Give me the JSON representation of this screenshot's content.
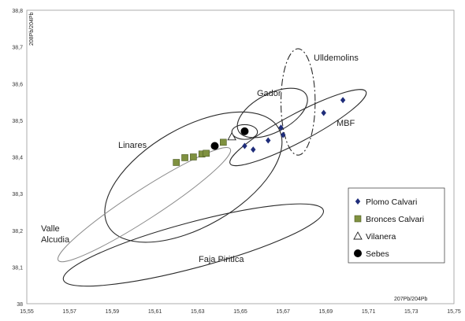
{
  "chart_data": {
    "type": "scatter",
    "xlabel": "207Pb/204Pb",
    "ylabel": "208Pb/204Pb",
    "xlim": [
      15.55,
      15.75
    ],
    "ylim": [
      38.0,
      38.8
    ],
    "xticks": [
      "15,55",
      "15,57",
      "15,59",
      "15,61",
      "15,63",
      "15,65",
      "15,67",
      "15,69",
      "15,71",
      "15,73",
      "15,75"
    ],
    "yticks": [
      "38",
      "38,1",
      "38,2",
      "38,3",
      "38,4",
      "38,5",
      "38,6",
      "38,7",
      "38,8"
    ],
    "grid": false,
    "legend_position": "right",
    "regions": [
      {
        "label": "Linares",
        "cx": 15.628,
        "cy": 38.345,
        "rx": 0.046,
        "ry": 0.135,
        "style": "solid",
        "angle_deg": -30
      },
      {
        "label": "Valle Alcudia",
        "cx": 15.605,
        "cy": 38.27,
        "rx": 0.048,
        "ry": 0.04,
        "style": "solid-light",
        "angle_deg": -33
      },
      {
        "label": "Faja Piritica",
        "cx": 15.628,
        "cy": 38.16,
        "rx": 0.063,
        "ry": 0.062,
        "style": "solid",
        "angle_deg": -15
      },
      {
        "label": "Gador",
        "cx": 15.665,
        "cy": 38.52,
        "rx": 0.018,
        "ry": 0.052,
        "style": "solid",
        "angle_deg": -28
      },
      {
        "label": "MBF",
        "cx": 15.677,
        "cy": 38.48,
        "rx": 0.036,
        "ry": 0.038,
        "style": "solid",
        "angle_deg": -28
      },
      {
        "label": "Ulldemolins",
        "cx": 15.677,
        "cy": 38.55,
        "rx": 0.008,
        "ry": 0.145,
        "style": "dash-dot",
        "angle_deg": 0
      },
      {
        "label": "",
        "cx": 15.652,
        "cy": 38.468,
        "rx": 0.006,
        "ry": 0.02,
        "style": "solid",
        "angle_deg": 0
      }
    ],
    "series": [
      {
        "name": "Plomo Calvari",
        "marker": "diamond",
        "color": "#1f2d7a",
        "points": [
          [
            15.652,
            38.43
          ],
          [
            15.656,
            38.42
          ],
          [
            15.663,
            38.445
          ],
          [
            15.669,
            38.48
          ],
          [
            15.67,
            38.46
          ],
          [
            15.689,
            38.52
          ],
          [
            15.698,
            38.555
          ]
        ]
      },
      {
        "name": "Bronces Calvari",
        "marker": "square",
        "color": "#7f9140",
        "points": [
          [
            15.62,
            38.385
          ],
          [
            15.624,
            38.398
          ],
          [
            15.628,
            38.4
          ],
          [
            15.632,
            38.408
          ],
          [
            15.634,
            38.41
          ],
          [
            15.642,
            38.44
          ]
        ]
      },
      {
        "name": "Vilanera",
        "marker": "triangle",
        "color": "#222222",
        "points": [
          [
            15.646,
            38.455
          ]
        ]
      },
      {
        "name": "Sebes",
        "marker": "circle",
        "color": "#000000",
        "points": [
          [
            15.638,
            38.43
          ],
          [
            15.652,
            38.47
          ]
        ]
      }
    ]
  }
}
